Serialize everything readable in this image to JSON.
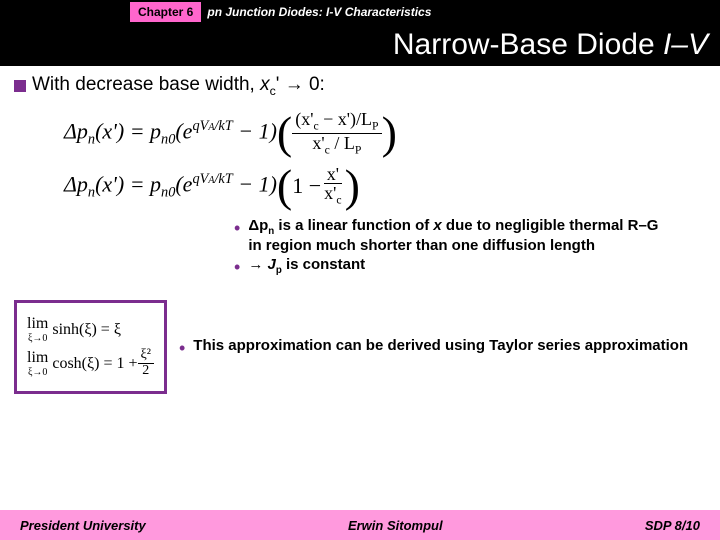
{
  "header": {
    "chapter": "Chapter 6",
    "topic": "pn Junction Diodes: I-V Characteristics"
  },
  "title": {
    "prefix": "Narrow-Base Diode ",
    "ital": "I–V"
  },
  "line1": {
    "text_a": "With decrease base width, ",
    "var": "x",
    "sub": "c",
    "text_b": "' → 0:"
  },
  "eq": {
    "lhs1": "Δp",
    "lhs_sub": "n",
    "lhs2": "(x') = p",
    "lhs3": "(e",
    "exp": "qV",
    "exp_sub": "A",
    "exp2": "/kT",
    "minus1": " − 1)",
    "frac1_num_a": "(x'",
    "frac1_num_b": " − x')/L",
    "frac1_num_sub": "P",
    "frac1_den_a": "x'",
    "frac1_den_b": " / L",
    "one_minus": "1 − ",
    "frac2_num": "x'",
    "frac2_den_a": "x'",
    "frac2_den_sub": "c",
    "n0": "n0",
    "c": "c"
  },
  "notes1": {
    "a1": "Δp",
    "a_sub": "n",
    "a2": " is a linear function of ",
    "a_var": "x",
    "a3": " due to negligible thermal R–G in region much shorter than one diffusion length",
    "b1": "→ ",
    "b_var": "J",
    "b_sub": "p",
    "b2": " is constant"
  },
  "limits": {
    "lim": "lim",
    "xi0": "ξ→0",
    "sinh": "sinh(ξ) = ξ",
    "cosh_a": "cosh(ξ) = 1 + ",
    "cosh_num": "ξ²",
    "cosh_den": "2"
  },
  "notes2": {
    "t": "This approximation can be derived using Taylor series approximation"
  },
  "footer": {
    "left": "President University",
    "center": "Erwin Sitompul",
    "right": "SDP 8/10"
  }
}
